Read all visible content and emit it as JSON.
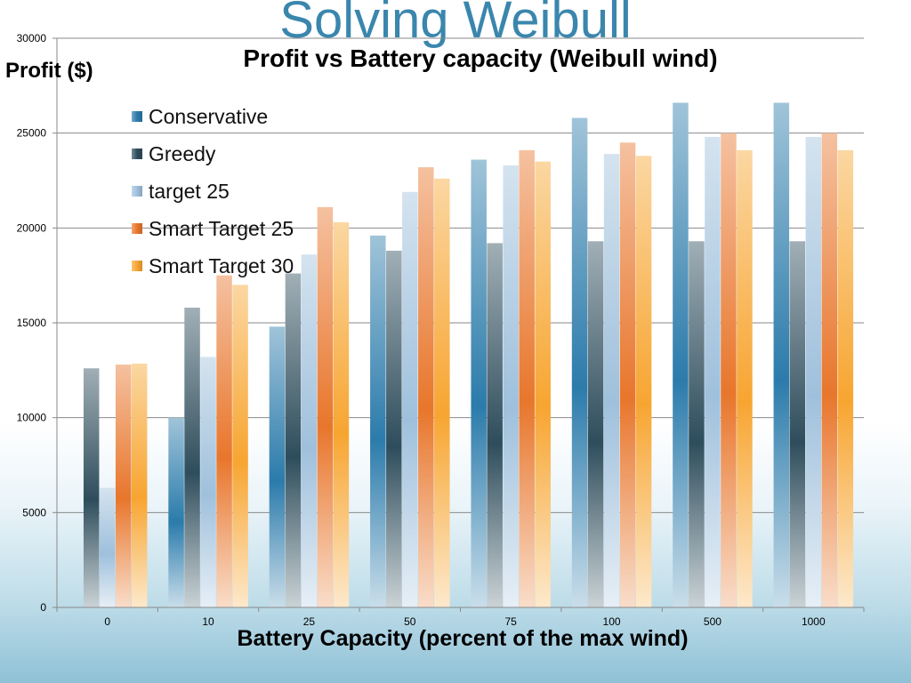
{
  "slide": {
    "title": "Solving Weibull"
  },
  "chart_data": {
    "type": "bar",
    "title": "Profit vs  Battery capacity (Weibull wind)",
    "ylabel": "Profit  ($)",
    "xlabel": "Battery Capacity (percent of the max wind)",
    "categories": [
      "0",
      "10",
      "25",
      "50",
      "75",
      "100",
      "500",
      "1000"
    ],
    "ylim": [
      0,
      30000
    ],
    "yticks": [
      "0",
      "5000",
      "10000",
      "15000",
      "20000",
      "25000",
      "30000"
    ],
    "ytick_values": [
      0,
      5000,
      10000,
      15000,
      20000,
      25000,
      30000
    ],
    "grid": true,
    "legend_position": "top-left",
    "series": [
      {
        "name": "Conservative",
        "color": "#2b7bab",
        "values": [
          0,
          10000,
          14800,
          19600,
          23600,
          25800,
          26600,
          26600
        ]
      },
      {
        "name": "Greedy",
        "color": "#2e4d5c",
        "values": [
          12600,
          15800,
          17600,
          18800,
          19200,
          19300,
          19300,
          19300
        ]
      },
      {
        "name": "target 25",
        "color": "#9fc0dc",
        "values": [
          6300,
          13200,
          18600,
          21900,
          23300,
          23900,
          24800,
          24800
        ]
      },
      {
        "name": "Smart Target 25",
        "color": "#e8762c",
        "values": [
          12800,
          17500,
          21100,
          23200,
          24100,
          24500,
          25000,
          25000
        ]
      },
      {
        "name": "Smart Target 30",
        "color": "#f7a531",
        "values": [
          12850,
          17000,
          20300,
          22600,
          23500,
          23800,
          24100,
          24100
        ]
      }
    ]
  }
}
